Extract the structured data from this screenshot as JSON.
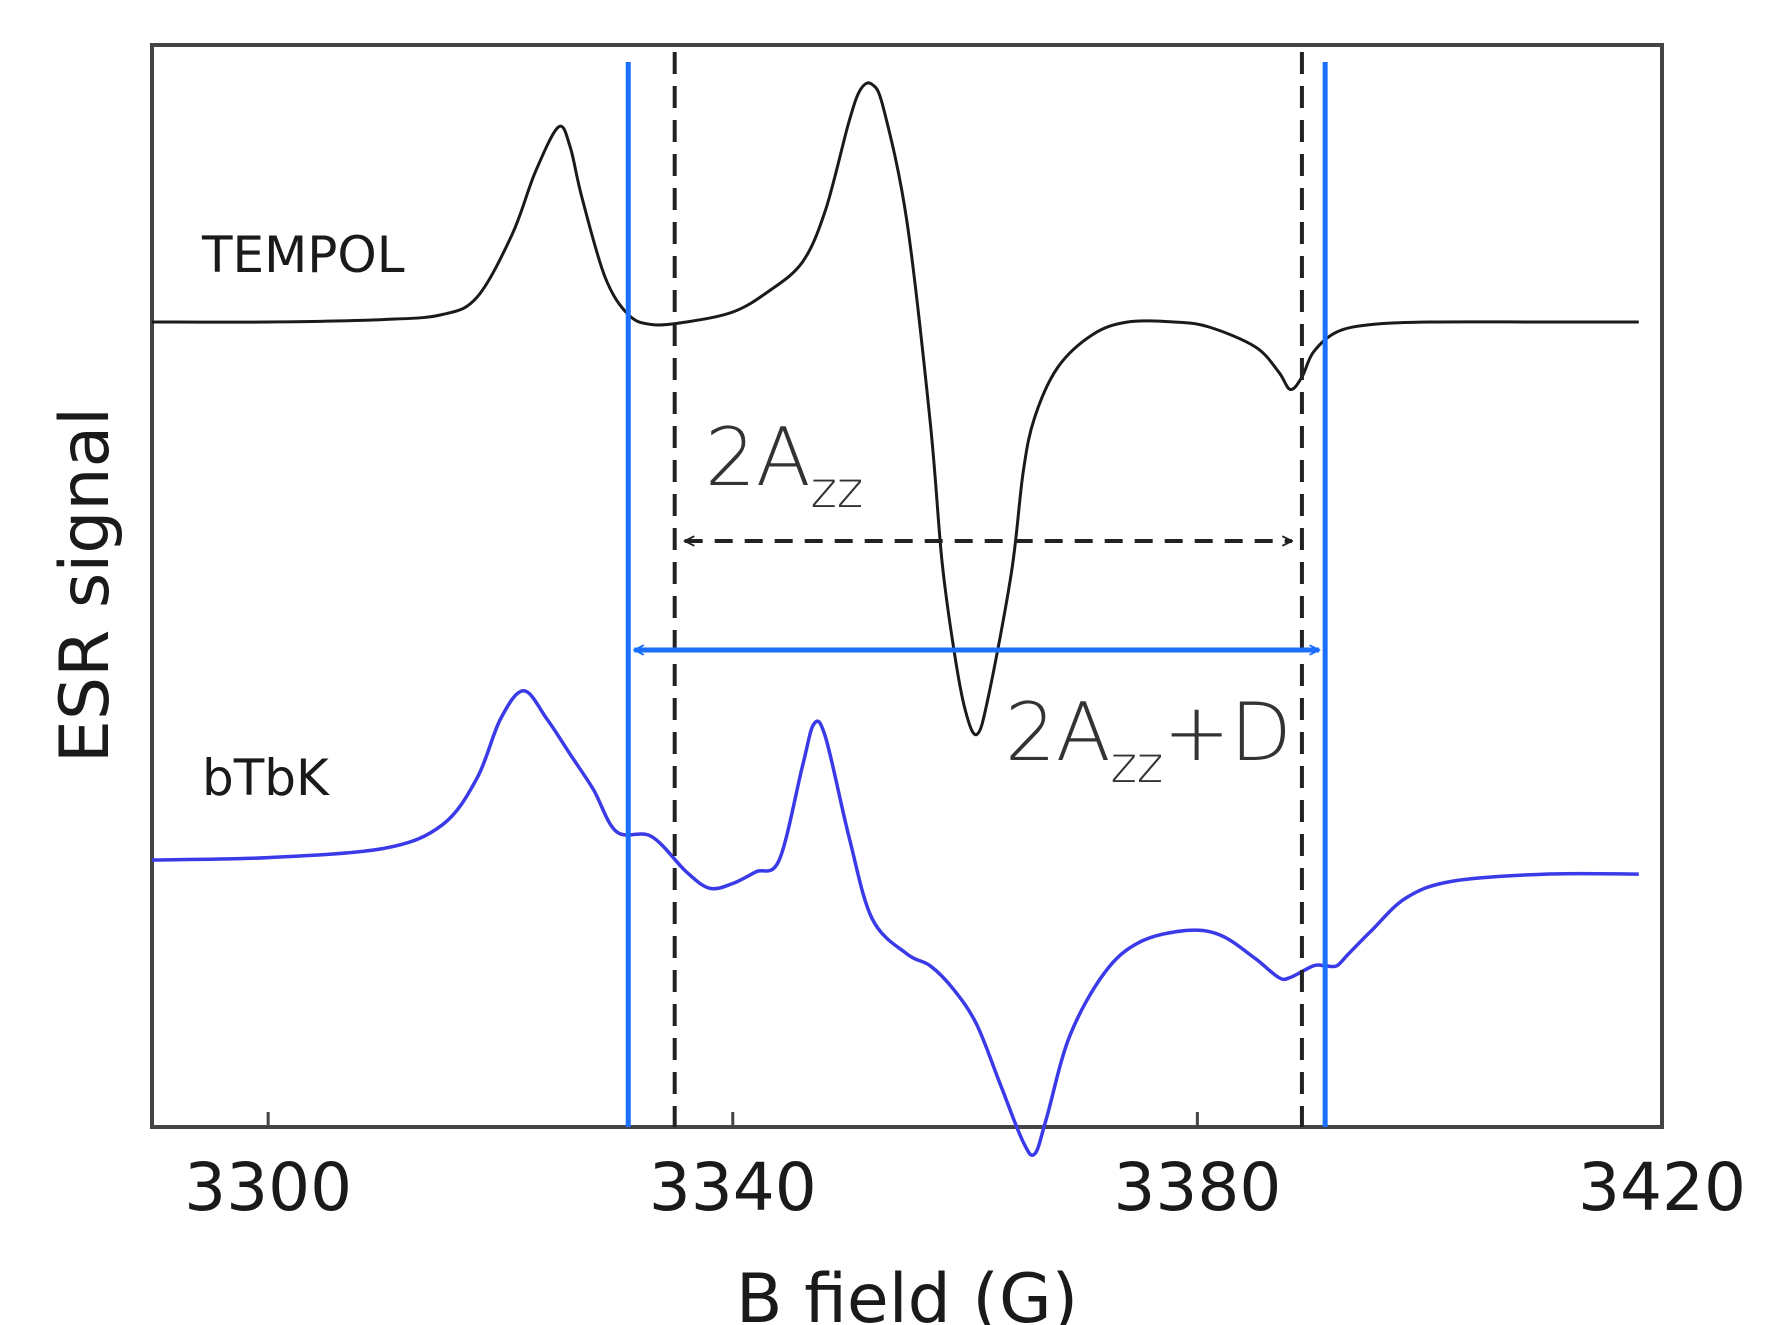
{
  "chart_data": {
    "type": "line",
    "xlabel": "B field (G)",
    "ylabel": "ESR signal",
    "xlim": [
      3290,
      3420
    ],
    "xticks": [
      3300,
      3340,
      3380,
      3420
    ],
    "tick_labels": [
      "3300",
      "3340",
      "3380",
      "3420"
    ],
    "yticks_shown": false,
    "grid": false,
    "colors": {
      "tempol": "#1a1a1a",
      "btbk": "#3a3ae8",
      "markers": "#1a6fff",
      "dashed": "#222222"
    },
    "series": [
      {
        "name": "TEMPOL",
        "label": "TEMPOL",
        "x": [
          3290,
          3300,
          3310,
          3315,
          3318,
          3321,
          3323,
          3325,
          3326,
          3327,
          3329,
          3331,
          3333,
          3336,
          3340,
          3343,
          3346,
          3348,
          3350,
          3351,
          3352,
          3353,
          3355,
          3357,
          3358,
          3359,
          3360,
          3361,
          3362,
          3364,
          3365,
          3366,
          3368,
          3371,
          3374,
          3378,
          3381,
          3385,
          3387,
          3388,
          3389,
          3390,
          3392,
          3395,
          3400,
          3410,
          3418
        ],
        "y": [
          0.0,
          0.0,
          0.01,
          0.03,
          0.1,
          0.35,
          0.6,
          0.78,
          0.7,
          0.5,
          0.18,
          0.03,
          -0.01,
          0.0,
          0.04,
          0.12,
          0.24,
          0.45,
          0.8,
          0.93,
          0.95,
          0.85,
          0.4,
          -0.4,
          -0.95,
          -1.3,
          -1.55,
          -1.65,
          -1.5,
          -1.0,
          -0.6,
          -0.38,
          -0.18,
          -0.05,
          0.0,
          0.0,
          -0.02,
          -0.1,
          -0.2,
          -0.27,
          -0.22,
          -0.12,
          -0.04,
          -0.01,
          0.0,
          0.0,
          0.0
        ]
      },
      {
        "name": "bTbK",
        "label": "bTbK",
        "x": [
          3290,
          3300,
          3310,
          3315,
          3318,
          3320,
          3322,
          3324,
          3326,
          3328,
          3330,
          3333,
          3336,
          3338,
          3340,
          3342,
          3344,
          3346,
          3347,
          3348,
          3350,
          3352,
          3355,
          3357,
          3359,
          3361,
          3363,
          3365,
          3366,
          3367,
          3369,
          3372,
          3375,
          3379,
          3382,
          3385,
          3387,
          3388,
          3390,
          3391,
          3392,
          3393,
          3395,
          3398,
          3402,
          3410,
          3418
        ],
        "y": [
          0.0,
          0.01,
          0.05,
          0.15,
          0.35,
          0.6,
          0.72,
          0.6,
          0.45,
          0.3,
          0.12,
          0.1,
          -0.05,
          -0.12,
          -0.1,
          -0.05,
          0.0,
          0.4,
          0.58,
          0.52,
          0.1,
          -0.25,
          -0.4,
          -0.45,
          -0.55,
          -0.7,
          -0.95,
          -1.2,
          -1.25,
          -1.1,
          -0.75,
          -0.48,
          -0.35,
          -0.3,
          -0.32,
          -0.42,
          -0.5,
          -0.5,
          -0.45,
          -0.45,
          -0.45,
          -0.4,
          -0.3,
          -0.16,
          -0.09,
          -0.06,
          -0.06
        ]
      }
    ],
    "annotations": [
      {
        "id": "azz",
        "main": "2A",
        "sub": "zz",
        "suffix": "",
        "x_from": 3335,
        "x_to": 3389
      },
      {
        "id": "azzd",
        "main": "2A",
        "sub": "zz",
        "suffix": "+D",
        "x_from": 3331,
        "x_to": 3391
      }
    ],
    "vlines": [
      {
        "x": 3331,
        "style": "solid"
      },
      {
        "x": 3335,
        "style": "dashed"
      },
      {
        "x": 3389,
        "style": "dashed"
      },
      {
        "x": 3391,
        "style": "solid"
      }
    ]
  }
}
